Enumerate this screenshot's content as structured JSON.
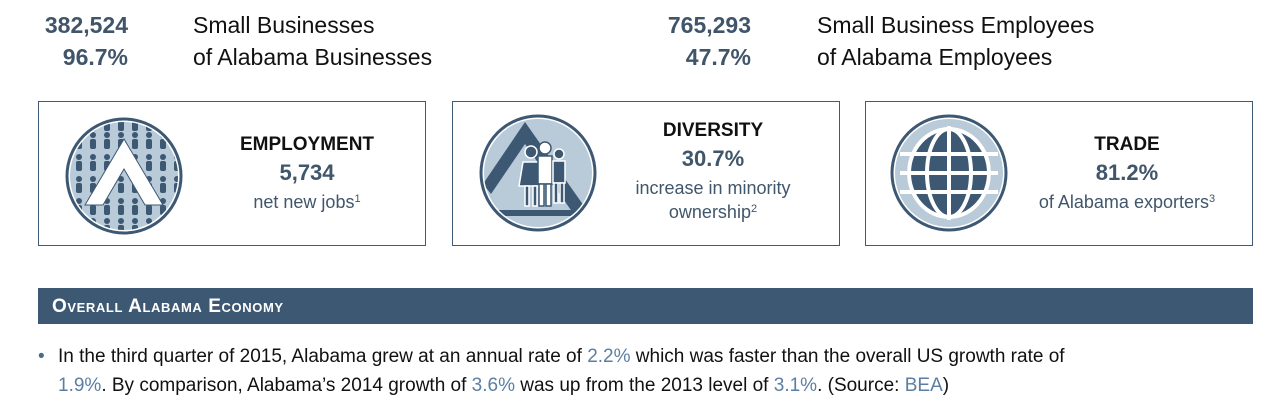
{
  "stats": {
    "small_businesses_count": "382,524",
    "small_businesses_label": "Small Businesses",
    "small_businesses_pct": "96.7%",
    "small_businesses_pct_label": "of Alabama Businesses",
    "employees_count": "765,293",
    "employees_label": "Small Business Employees",
    "employees_pct": "47.7%",
    "employees_pct_label": "of Alabama Employees"
  },
  "cards": {
    "employment": {
      "title": "EMPLOYMENT",
      "value": "5,734",
      "desc": "net new jobs",
      "sup": "1",
      "icon": "people-crowd-icon"
    },
    "diversity": {
      "title": "DIVERSITY",
      "value": "30.7%",
      "desc1": "increase in minority",
      "desc2": "ownership",
      "sup": "2",
      "icon": "diverse-people-icon"
    },
    "trade": {
      "title": "TRADE",
      "value": "81.2%",
      "desc": "of Alabama exporters",
      "sup": "3",
      "icon": "globe-icon"
    }
  },
  "section": {
    "title": "Overall Alabama Economy"
  },
  "bullet": {
    "t1": "In the third quarter of 2015, Alabama grew at an annual rate of ",
    "v1": "2.2%",
    "t2": " which was faster than the overall US growth rate of ",
    "v2": "1.9%",
    "t3": ". By comparison, Alabama’s 2014 growth of ",
    "v3": "3.6%",
    "t4": " was up from the 2013 level of ",
    "v4": "3.1%",
    "t5": ". (Source: ",
    "source": "BEA",
    "t6": ")"
  },
  "colors": {
    "primary": "#3d5873",
    "accent_text": "#40566b",
    "highlight": "#5b7ea2",
    "icon_fill": "#b9cad9"
  }
}
